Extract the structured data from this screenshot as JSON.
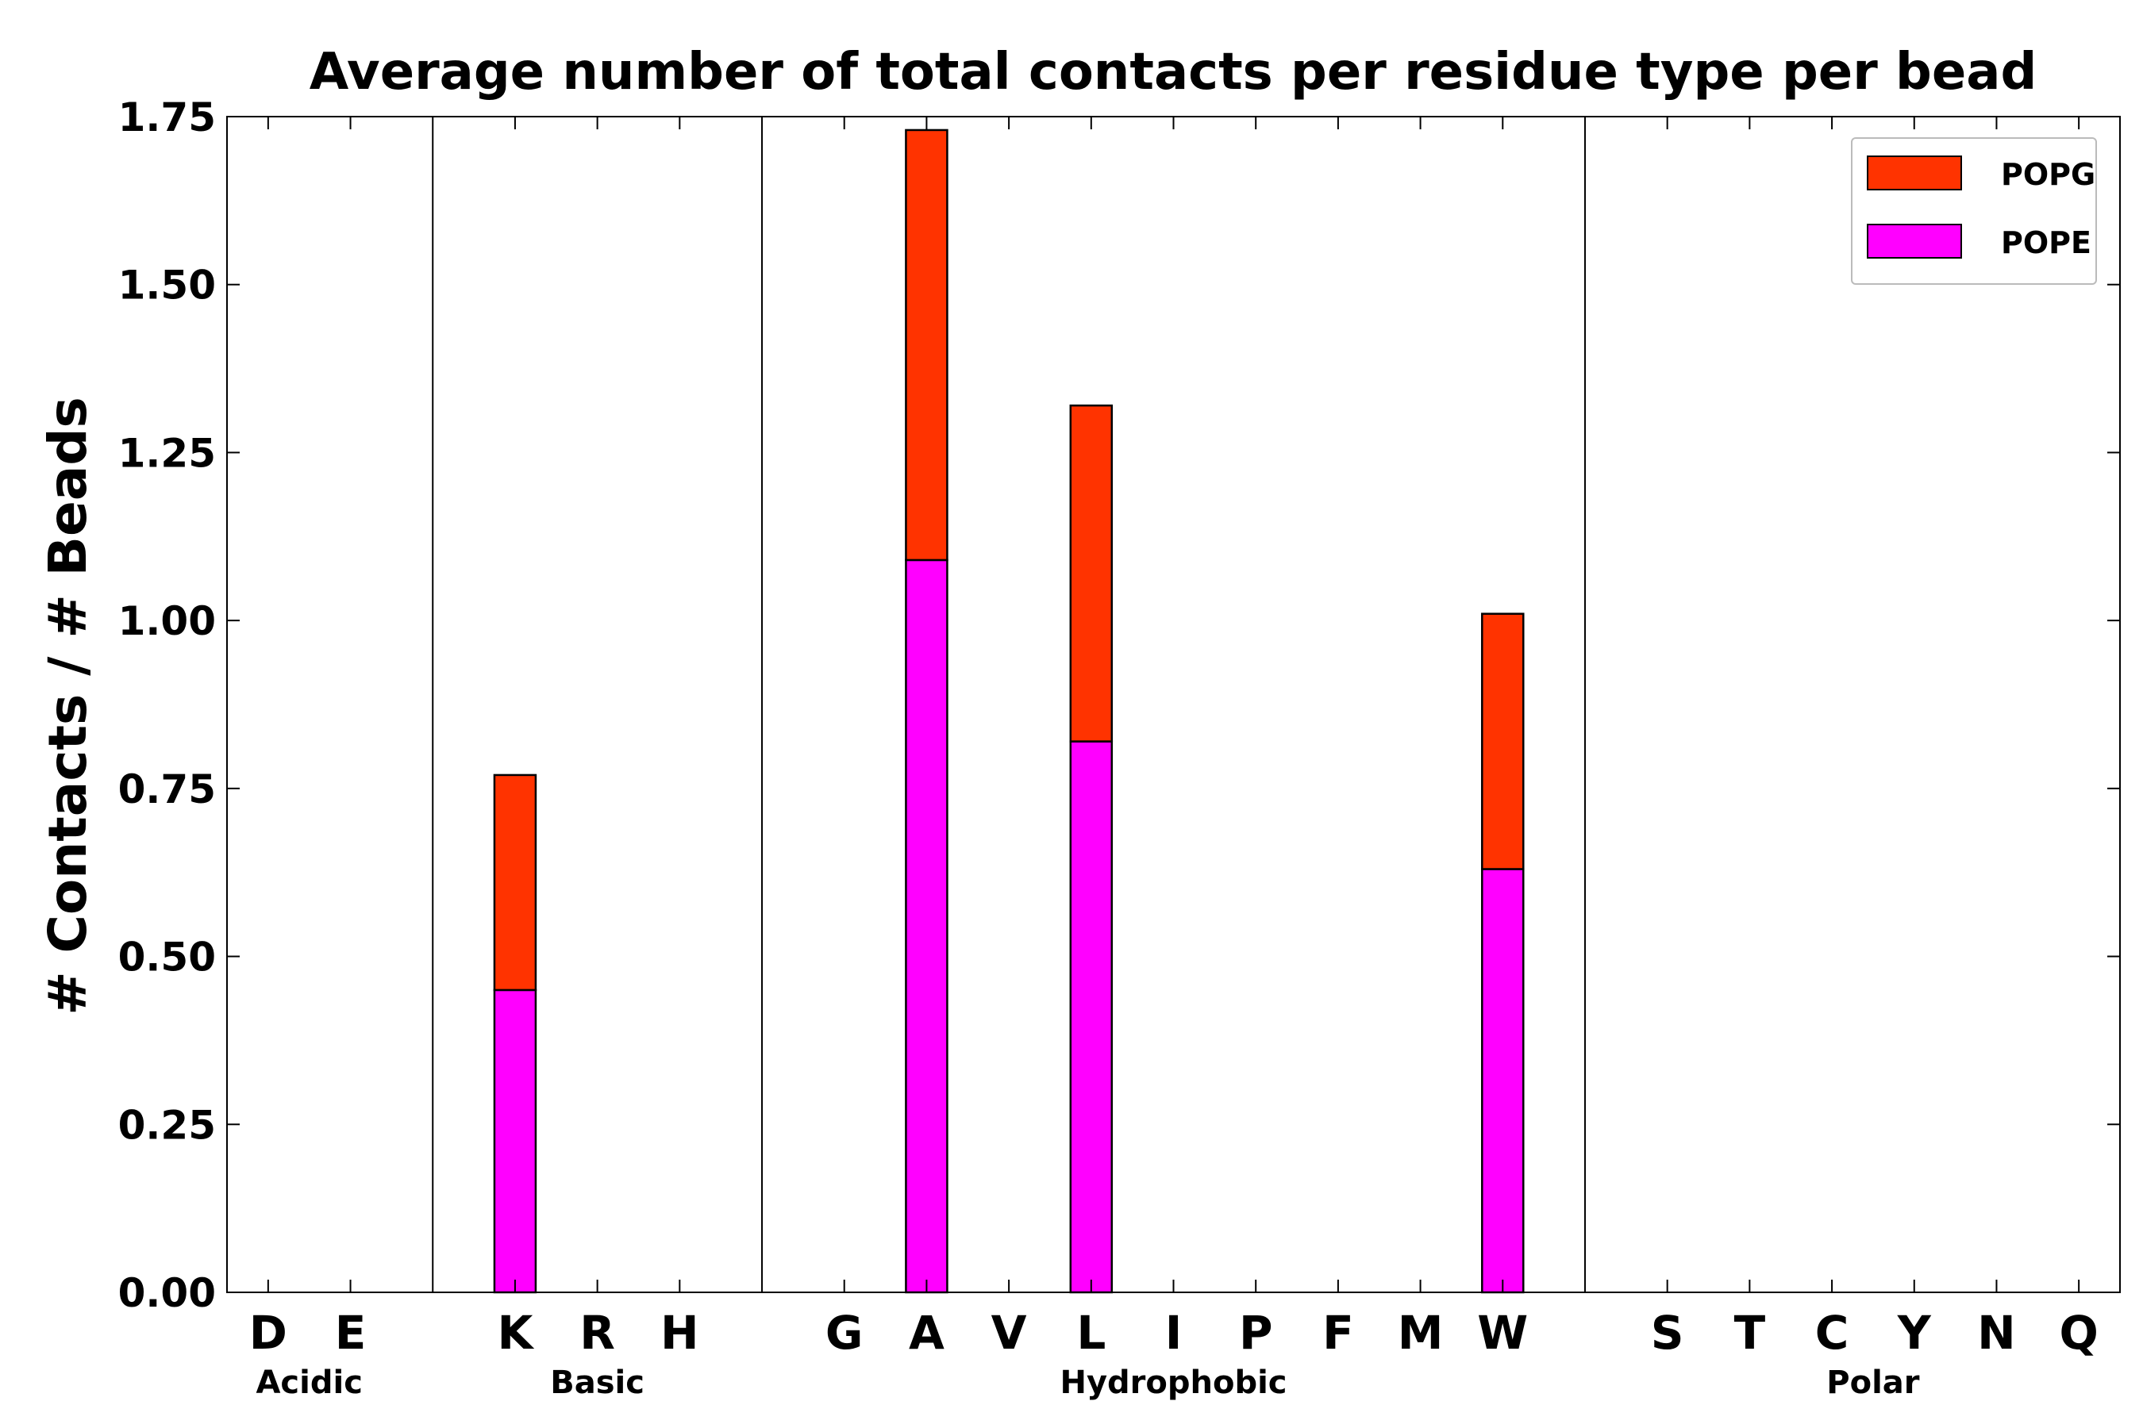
{
  "chart_data": {
    "type": "bar",
    "stacked": true,
    "title": "Average number of total contacts per residue type per bead",
    "xlabel": "",
    "ylabel": "# Contacts / # Beads",
    "ylim": [
      0,
      1.75
    ],
    "yticks": [
      "0.00",
      "0.25",
      "0.50",
      "0.75",
      "1.00",
      "1.25",
      "1.50",
      "1.75"
    ],
    "categories": [
      "D",
      "E",
      "",
      "K",
      "R",
      "H",
      "",
      "G",
      "A",
      "V",
      "L",
      "I",
      "P",
      "F",
      "M",
      "W",
      "",
      "S",
      "T",
      "C",
      "Y",
      "N",
      "Q"
    ],
    "groups": [
      {
        "label": "Acidic",
        "first": 0,
        "last": 1
      },
      {
        "label": "Basic",
        "first": 3,
        "last": 5
      },
      {
        "label": "Hydrophobic",
        "first": 7,
        "last": 15
      },
      {
        "label": "Polar",
        "first": 17,
        "last": 22
      }
    ],
    "series": [
      {
        "name": "POPE",
        "color": "#ff00ff",
        "values": [
          0,
          0,
          0,
          0.45,
          0,
          0,
          0,
          0,
          1.09,
          0,
          0.82,
          0,
          0,
          0,
          0,
          0.63,
          0,
          0,
          0,
          0,
          0,
          0,
          0
        ]
      },
      {
        "name": "POPG",
        "color": "#ff3300",
        "values": [
          0,
          0,
          0,
          0.32,
          0,
          0,
          0,
          0,
          0.64,
          0,
          0.5,
          0,
          0,
          0,
          0,
          0.38,
          0,
          0,
          0,
          0,
          0,
          0,
          0
        ]
      }
    ],
    "legend": {
      "position": "top-right",
      "entries": [
        "POPG",
        "POPE"
      ]
    },
    "grid": false
  }
}
